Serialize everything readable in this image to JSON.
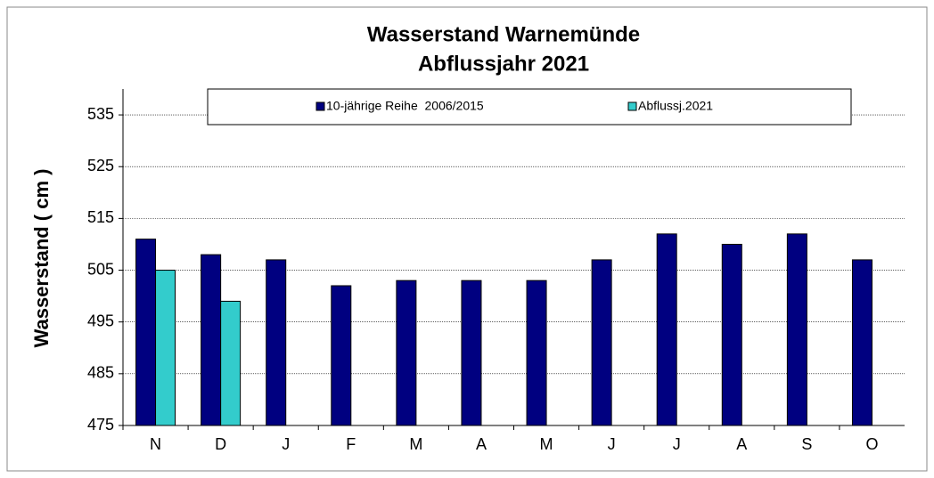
{
  "chart_data": {
    "type": "bar",
    "title": "Wasserstand Warnemünde",
    "subtitle": "Abflussjahr 2021",
    "y_label": "Wasserstand ( cm )",
    "categories": [
      "N",
      "D",
      "J",
      "F",
      "M",
      "A",
      "M",
      "J",
      "J",
      "A",
      "S",
      "O"
    ],
    "series": [
      {
        "name": "10-jährige Reihe  2006/2015",
        "color": "#000080",
        "values": [
          511,
          508,
          507,
          502,
          503,
          503,
          503,
          507,
          512,
          510,
          512,
          507
        ]
      },
      {
        "name": "Abflussj.2021",
        "color": "#33cccc",
        "values": [
          505,
          499,
          null,
          null,
          null,
          null,
          null,
          null,
          null,
          null,
          null,
          null
        ]
      }
    ],
    "ylim": [
      475,
      540
    ],
    "yticks": [
      475,
      485,
      495,
      505,
      515,
      525,
      535
    ],
    "grid": true,
    "legend": "top"
  }
}
